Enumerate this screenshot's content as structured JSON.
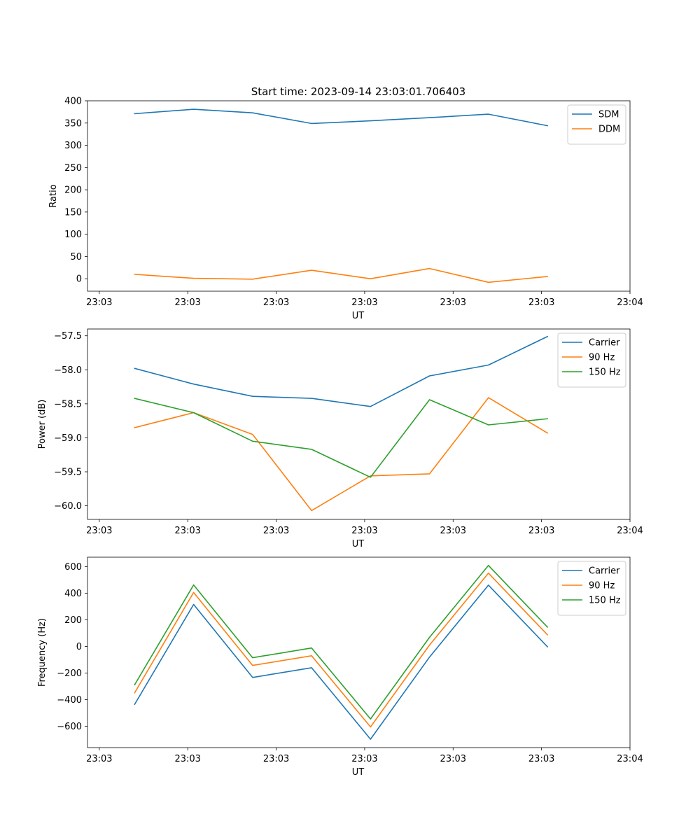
{
  "figure": {
    "title": "Start time: 2023-09-14 23:03:01.706403"
  },
  "chart_data": [
    {
      "type": "line",
      "title": "Start time: 2023-09-14 23:03:01.706403",
      "xlabel": "UT",
      "ylabel": "Ratio",
      "x": [
        1,
        2,
        3,
        4,
        5,
        6,
        7,
        8
      ],
      "xlim": [
        0.2,
        9.4
      ],
      "x_ticks": [
        0.4,
        1.9,
        3.4,
        4.9,
        6.4,
        7.9,
        9.4
      ],
      "x_tick_labels": [
        "23:03",
        "23:03",
        "23:03",
        "23:03",
        "23:03",
        "23:03",
        "23:04"
      ],
      "ylim": [
        -28,
        400
      ],
      "y_ticks": [
        0,
        50,
        100,
        150,
        200,
        250,
        300,
        350,
        400
      ],
      "y_tick_labels": [
        "0",
        "50",
        "100",
        "150",
        "200",
        "250",
        "300",
        "350",
        "400"
      ],
      "legend_position": "top-right",
      "series": [
        {
          "name": "SDM",
          "color": "#1f77b4",
          "values": [
            371,
            381,
            373,
            349,
            355,
            362,
            370,
            344
          ]
        },
        {
          "name": "DDM",
          "color": "#ff7f0e",
          "values": [
            10,
            1,
            -1,
            19,
            0,
            23,
            -8,
            5
          ]
        }
      ]
    },
    {
      "type": "line",
      "xlabel": "UT",
      "ylabel": "Power (dB)",
      "x": [
        1,
        2,
        3,
        4,
        5,
        6,
        7,
        8
      ],
      "xlim": [
        0.2,
        9.4
      ],
      "x_ticks": [
        0.4,
        1.9,
        3.4,
        4.9,
        6.4,
        7.9,
        9.4
      ],
      "x_tick_labels": [
        "23:03",
        "23:03",
        "23:03",
        "23:03",
        "23:03",
        "23:03",
        "23:04"
      ],
      "ylim": [
        -60.2,
        -57.4
      ],
      "y_ticks": [
        -60.0,
        -59.5,
        -59.0,
        -58.5,
        -58.0,
        -57.5
      ],
      "y_tick_labels": [
        "−60.0",
        "−59.5",
        "−59.0",
        "−58.5",
        "−58.0",
        "−57.5"
      ],
      "legend_position": "top-right",
      "series": [
        {
          "name": "Carrier",
          "color": "#1f77b4",
          "values": [
            -57.98,
            -58.21,
            -58.39,
            -58.42,
            -58.54,
            -58.09,
            -57.93,
            -57.51
          ]
        },
        {
          "name": "90 Hz",
          "color": "#ff7f0e",
          "values": [
            -58.85,
            -58.63,
            -58.95,
            -60.07,
            -59.56,
            -59.53,
            -58.41,
            -58.93
          ]
        },
        {
          "name": "150 Hz",
          "color": "#2ca02c",
          "values": [
            -58.42,
            -58.63,
            -59.05,
            -59.17,
            -59.58,
            -58.44,
            -58.81,
            -58.72
          ]
        }
      ]
    },
    {
      "type": "line",
      "xlabel": "UT",
      "ylabel": "Frequency (Hz)",
      "x": [
        1,
        2,
        3,
        4,
        5,
        6,
        7,
        8
      ],
      "xlim": [
        0.2,
        9.4
      ],
      "x_ticks": [
        0.4,
        1.9,
        3.4,
        4.9,
        6.4,
        7.9,
        9.4
      ],
      "x_tick_labels": [
        "23:03",
        "23:03",
        "23:03",
        "23:03",
        "23:03",
        "23:03",
        "23:04"
      ],
      "ylim": [
        -760,
        670
      ],
      "y_ticks": [
        -600,
        -400,
        -200,
        0,
        200,
        400,
        600
      ],
      "y_tick_labels": [
        "−600",
        "−400",
        "−200",
        "0",
        "200",
        "400",
        "600"
      ],
      "legend_position": "top-right",
      "series": [
        {
          "name": "Carrier",
          "color": "#1f77b4",
          "values": [
            -435,
            315,
            -233,
            -160,
            -697,
            -80,
            460,
            -3
          ]
        },
        {
          "name": "90 Hz",
          "color": "#ff7f0e",
          "values": [
            -348,
            405,
            -143,
            -70,
            -605,
            10,
            550,
            87
          ]
        },
        {
          "name": "150 Hz",
          "color": "#2ca02c",
          "values": [
            -288,
            462,
            -85,
            -12,
            -545,
            68,
            608,
            145
          ]
        }
      ]
    }
  ]
}
